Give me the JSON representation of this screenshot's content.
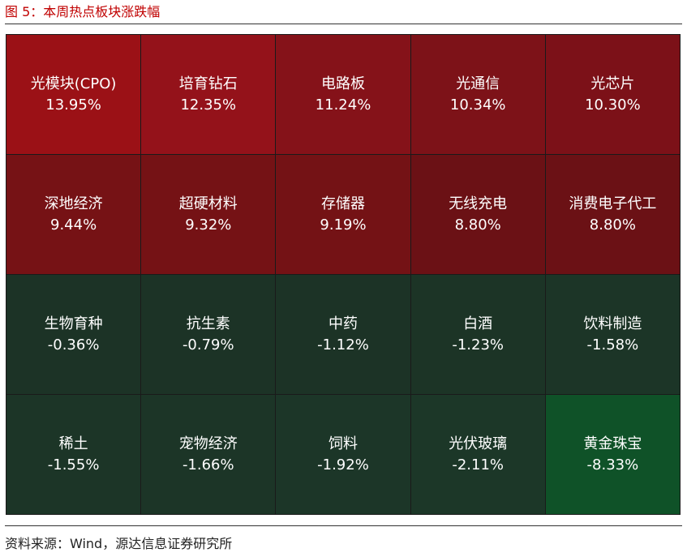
{
  "figure": {
    "title": "图 5：本周热点板块涨跌幅",
    "source": "资料来源：Wind，源达信息证券研究所"
  },
  "chart_data": {
    "type": "heatmap",
    "title": "图 5：本周热点板块涨跌幅",
    "cells": [
      {
        "name": "光模块(CPO)",
        "value": 13.95,
        "label": "13.95%",
        "color": "#9b1116"
      },
      {
        "name": "培育钻石",
        "value": 12.35,
        "label": "12.35%",
        "color": "#94121a"
      },
      {
        "name": "电路板",
        "value": 11.24,
        "label": "11.24%",
        "color": "#851219"
      },
      {
        "name": "光通信",
        "value": 10.34,
        "label": "10.34%",
        "color": "#7d1218"
      },
      {
        "name": "光芯片",
        "value": 10.3,
        "label": "10.30%",
        "color": "#7c1118"
      },
      {
        "name": "深地经济",
        "value": 9.44,
        "label": "9.44%",
        "color": "#761215"
      },
      {
        "name": "超硬材料",
        "value": 9.32,
        "label": "9.32%",
        "color": "#751215"
      },
      {
        "name": "存储器",
        "value": 9.19,
        "label": "9.19%",
        "color": "#741215"
      },
      {
        "name": "无线充电",
        "value": 8.8,
        "label": "8.80%",
        "color": "#6b1115"
      },
      {
        "name": "消费电子代工",
        "value": 8.8,
        "label": "8.80%",
        "color": "#6b1115"
      },
      {
        "name": "生物育种",
        "value": -0.36,
        "label": "-0.36%",
        "color": "#1c3326"
      },
      {
        "name": "抗生素",
        "value": -0.79,
        "label": "-0.79%",
        "color": "#1c3326"
      },
      {
        "name": "中药",
        "value": -1.12,
        "label": "-1.12%",
        "color": "#1c3326"
      },
      {
        "name": "白酒",
        "value": -1.23,
        "label": "-1.23%",
        "color": "#1c3426"
      },
      {
        "name": "饮料制造",
        "value": -1.58,
        "label": "-1.58%",
        "color": "#1c3527"
      },
      {
        "name": "稀土",
        "value": -1.55,
        "label": "-1.55%",
        "color": "#1c3527"
      },
      {
        "name": "宠物经济",
        "value": -1.66,
        "label": "-1.66%",
        "color": "#1c3527"
      },
      {
        "name": "饲料",
        "value": -1.92,
        "label": "-1.92%",
        "color": "#1c3628"
      },
      {
        "name": "光伏玻璃",
        "value": -2.11,
        "label": "-2.11%",
        "color": "#1c3728"
      },
      {
        "name": "黄金珠宝",
        "value": -8.33,
        "label": "-8.33%",
        "color": "#0f5228"
      }
    ],
    "grid": {
      "rows": 4,
      "columns": 5
    }
  }
}
